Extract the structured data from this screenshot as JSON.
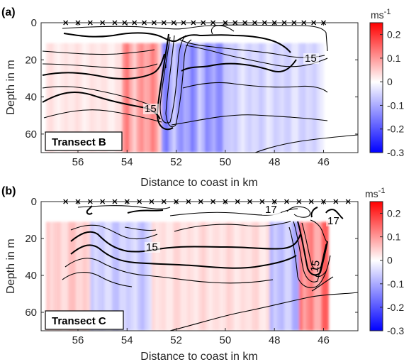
{
  "chart_data": [
    {
      "type": "heatmap",
      "panel_label": "(a)",
      "transect_label": "Transect B",
      "xlabel": "Distance to coast in km",
      "ylabel": "Depth in m",
      "x_ticks": [
        56,
        54,
        52,
        50,
        48,
        46
      ],
      "y_ticks": [
        0,
        20,
        40,
        60
      ],
      "xlim": [
        57.5,
        44.6
      ],
      "ylim": [
        0,
        70
      ],
      "colorbar": {
        "unit": "ms",
        "exponent": "-1",
        "ticks": [
          0.2,
          0.1,
          0,
          -0.1,
          -0.2,
          -0.3
        ],
        "range": [
          -0.3,
          0.25
        ]
      },
      "station_markers": [
        56.5,
        56.0,
        55.5,
        55.0,
        54.5,
        54.1,
        53.7,
        53.3,
        52.9,
        52.5,
        52.1,
        51.7,
        51.3,
        50.9,
        50.5,
        50.0,
        49.6,
        49.2,
        48.8,
        48.4,
        48.0,
        47.6,
        47.2,
        46.8,
        46.4,
        46.0
      ],
      "contour_labels": [
        "15",
        "15"
      ],
      "velocity_field": [
        {
          "x_range": [
            57.3,
            54.2
          ],
          "mean": 0.03
        },
        {
          "x_range": [
            54.2,
            52.6
          ],
          "mean": 0.12
        },
        {
          "x_range": [
            52.6,
            49.8
          ],
          "mean": -0.12
        },
        {
          "x_range": [
            49.8,
            46.0
          ],
          "mean": -0.05
        }
      ]
    },
    {
      "type": "heatmap",
      "panel_label": "(b)",
      "transect_label": "Transect C",
      "xlabel": "Distance to coast in km",
      "ylabel": "Depth in m",
      "x_ticks": [
        56,
        54,
        52,
        50,
        48,
        46
      ],
      "y_ticks": [
        0,
        20,
        40,
        60
      ],
      "xlim": [
        57.5,
        44.6
      ],
      "ylim": [
        0,
        70
      ],
      "colorbar": {
        "unit": "ms",
        "exponent": "-1",
        "ticks": [
          0.2,
          0.1,
          0,
          -0.1,
          -0.2,
          -0.3
        ],
        "range": [
          -0.3,
          0.25
        ]
      },
      "station_markers": [
        56.5,
        56.0,
        55.5,
        55.0,
        54.5,
        54.0,
        53.5,
        53.0,
        52.5,
        52.0,
        51.5,
        51.0,
        50.5,
        50.0,
        49.5,
        49.0,
        48.5,
        48.0,
        47.5,
        47.0,
        46.5,
        46.0,
        45.5,
        45.0
      ],
      "contour_labels": [
        "15",
        "17",
        "17",
        "15"
      ],
      "velocity_field": [
        {
          "x_range": [
            57.3,
            55.5
          ],
          "mean": 0.06
        },
        {
          "x_range": [
            55.5,
            53.0
          ],
          "mean": -0.06
        },
        {
          "x_range": [
            53.0,
            48.2
          ],
          "mean": 0.04
        },
        {
          "x_range": [
            48.2,
            47.0
          ],
          "mean": -0.08
        },
        {
          "x_range": [
            47.0,
            45.8
          ],
          "mean": 0.15
        }
      ]
    }
  ]
}
